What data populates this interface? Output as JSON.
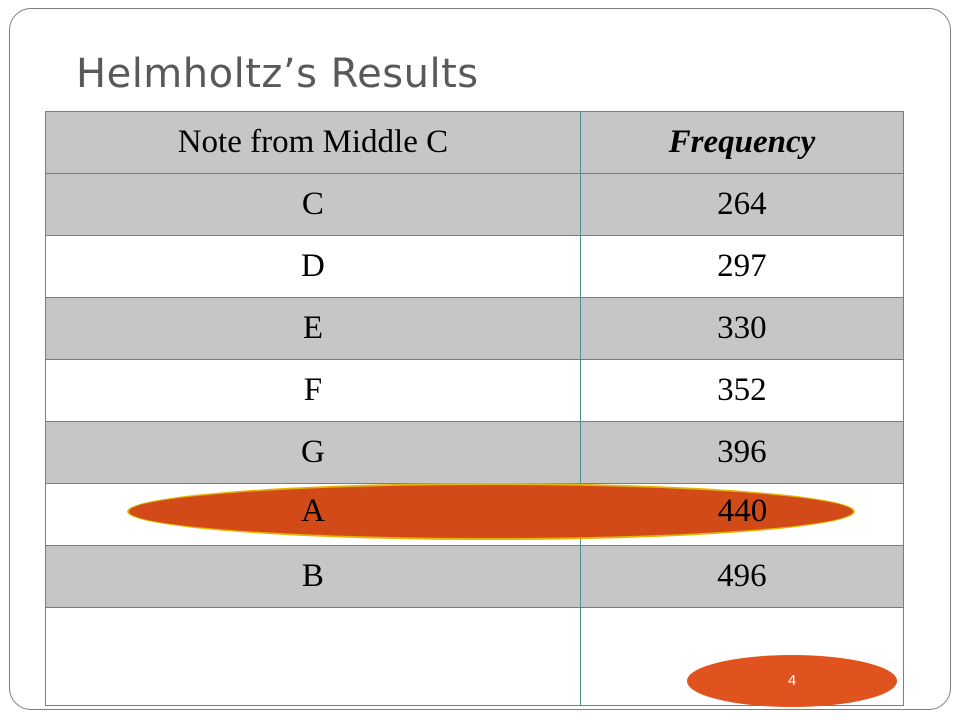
{
  "slide": {
    "title": "Helmholtz’s Results",
    "page_number": "4"
  },
  "table": {
    "headers": {
      "note": "Note from Middle C",
      "frequency": "Frequency"
    },
    "rows": [
      {
        "note": "C",
        "frequency": "264"
      },
      {
        "note": "D",
        "frequency": "297"
      },
      {
        "note": "E",
        "frequency": "330"
      },
      {
        "note": "F",
        "frequency": "352"
      },
      {
        "note": "G",
        "frequency": "396"
      },
      {
        "note": "A",
        "frequency": "440"
      },
      {
        "note": "B",
        "frequency": "496"
      }
    ],
    "highlighted_row": {
      "note": "A",
      "frequency": "440"
    }
  },
  "colors": {
    "highlight": "#d24a18",
    "highlight_outline": "#e3b400",
    "badge": "#e0521e",
    "shaded_row": "#c6c6c6",
    "border": "#4f8f8f",
    "title": "#595959"
  }
}
